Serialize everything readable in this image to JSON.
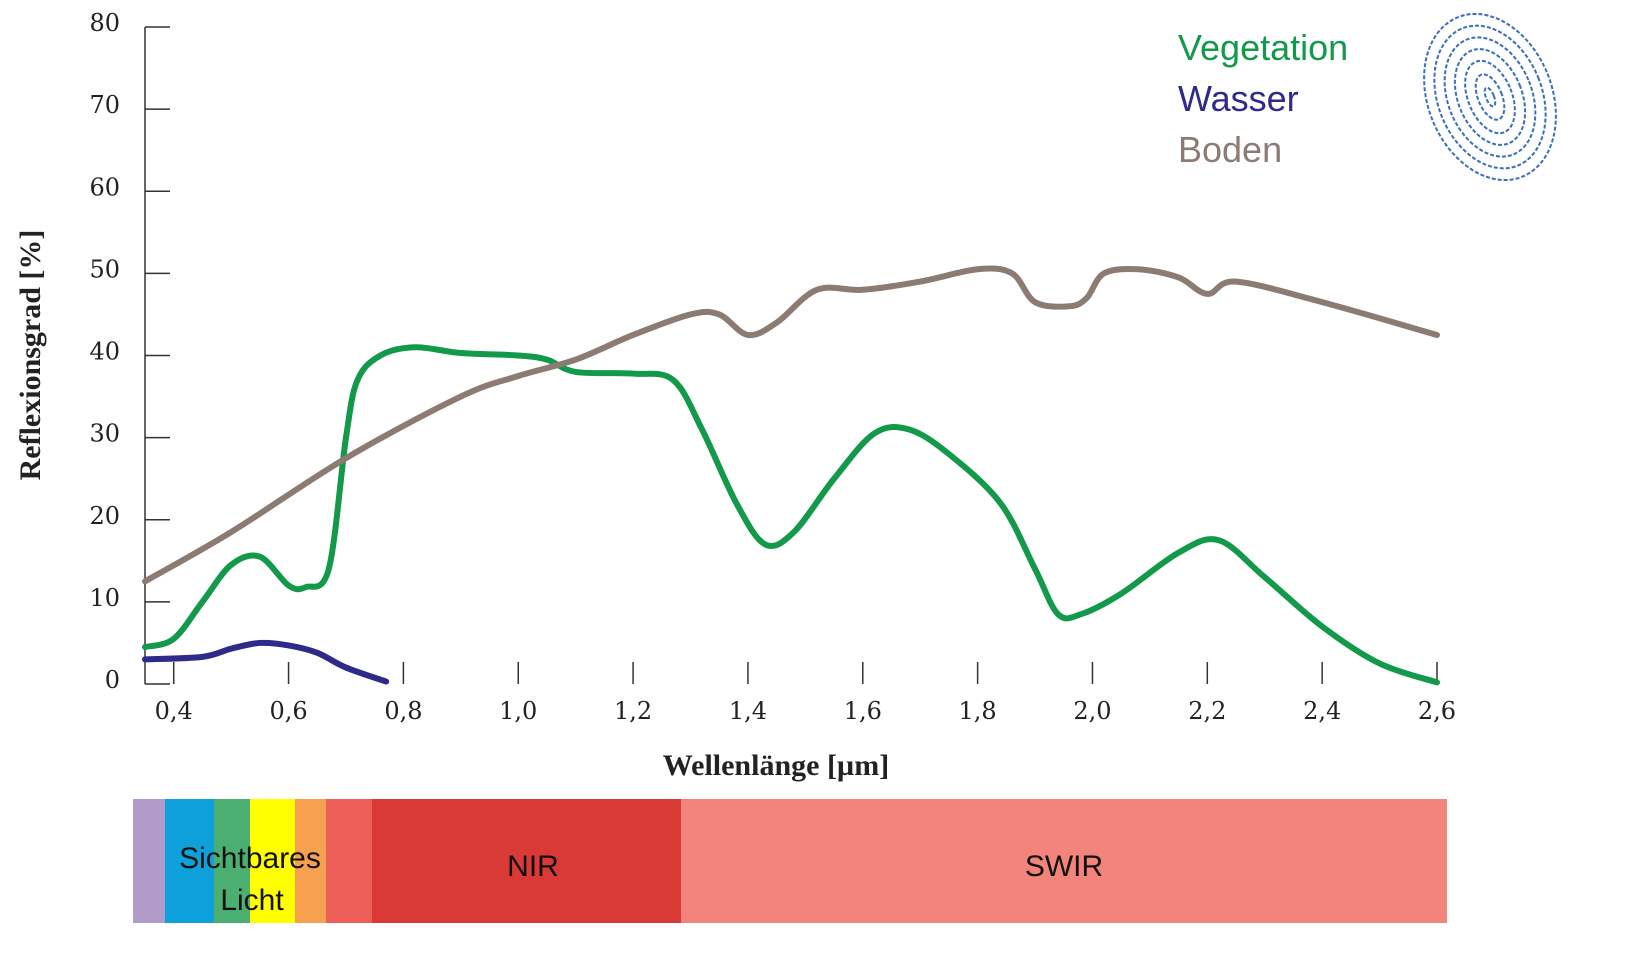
{
  "chart_data": {
    "type": "line",
    "xlabel": "Wellenlänge [µm]",
    "ylabel": "Reflexionsgrad [%]",
    "xlim": [
      0.35,
      2.6
    ],
    "ylim": [
      0,
      80
    ],
    "xticks": [
      {
        "value": 0.4,
        "label": "0,4"
      },
      {
        "value": 0.6,
        "label": "0,6"
      },
      {
        "value": 0.8,
        "label": "0,8"
      },
      {
        "value": 1.0,
        "label": "1,0"
      },
      {
        "value": 1.2,
        "label": "1,2"
      },
      {
        "value": 1.4,
        "label": "1,4"
      },
      {
        "value": 1.6,
        "label": "1,6"
      },
      {
        "value": 1.8,
        "label": "1,8"
      },
      {
        "value": 2.0,
        "label": "2,0"
      },
      {
        "value": 2.2,
        "label": "2,2"
      },
      {
        "value": 2.4,
        "label": "2,4"
      },
      {
        "value": 2.6,
        "label": "2,6"
      }
    ],
    "yticks": [
      0,
      10,
      20,
      30,
      40,
      50,
      60,
      70,
      80
    ],
    "legend": "upper right",
    "series": [
      {
        "name": "Vegetation",
        "color": "#12994a",
        "x": [
          0.35,
          0.4,
          0.45,
          0.5,
          0.55,
          0.6,
          0.63,
          0.67,
          0.7,
          0.72,
          0.76,
          0.82,
          0.9,
          1.0,
          1.05,
          1.1,
          1.2,
          1.27,
          1.32,
          1.38,
          1.43,
          1.48,
          1.55,
          1.62,
          1.68,
          1.75,
          1.84,
          1.9,
          1.94,
          1.98,
          2.05,
          2.15,
          2.22,
          2.3,
          2.4,
          2.5,
          2.6
        ],
        "values": [
          4.5,
          5.5,
          10,
          14.5,
          15.5,
          12,
          11.8,
          14,
          30,
          37,
          40,
          41,
          40.3,
          40,
          39.5,
          38,
          37.8,
          37,
          31,
          22,
          17,
          18.5,
          25,
          30.5,
          31,
          28,
          22,
          14,
          8.5,
          8.5,
          11,
          16,
          17.5,
          13,
          7,
          2.5,
          0.2
        ]
      },
      {
        "name": "Wasser",
        "color": "#2e2a8a",
        "x": [
          0.35,
          0.45,
          0.5,
          0.55,
          0.6,
          0.65,
          0.7,
          0.77
        ],
        "values": [
          3,
          3.3,
          4.3,
          5,
          4.7,
          3.8,
          2,
          0.3
        ]
      },
      {
        "name": "Boden",
        "color": "#8c7b72",
        "x": [
          0.35,
          0.5,
          0.7,
          0.9,
          1.0,
          1.1,
          1.2,
          1.3,
          1.35,
          1.4,
          1.45,
          1.52,
          1.6,
          1.7,
          1.8,
          1.86,
          1.9,
          1.96,
          1.99,
          2.02,
          2.08,
          2.15,
          2.2,
          2.25,
          2.4,
          2.6
        ],
        "values": [
          12.5,
          18.5,
          27.5,
          35,
          37.5,
          39.5,
          42.5,
          45,
          45,
          42.5,
          44,
          48,
          48,
          49,
          50.5,
          50,
          46.5,
          46,
          47,
          50,
          50.5,
          49.5,
          47.5,
          49,
          46.5,
          42.5
        ]
      }
    ]
  },
  "spectrum_labels": {
    "visible": [
      "Sichtbares",
      "Licht"
    ],
    "nir": "NIR",
    "swir": "SWIR"
  }
}
